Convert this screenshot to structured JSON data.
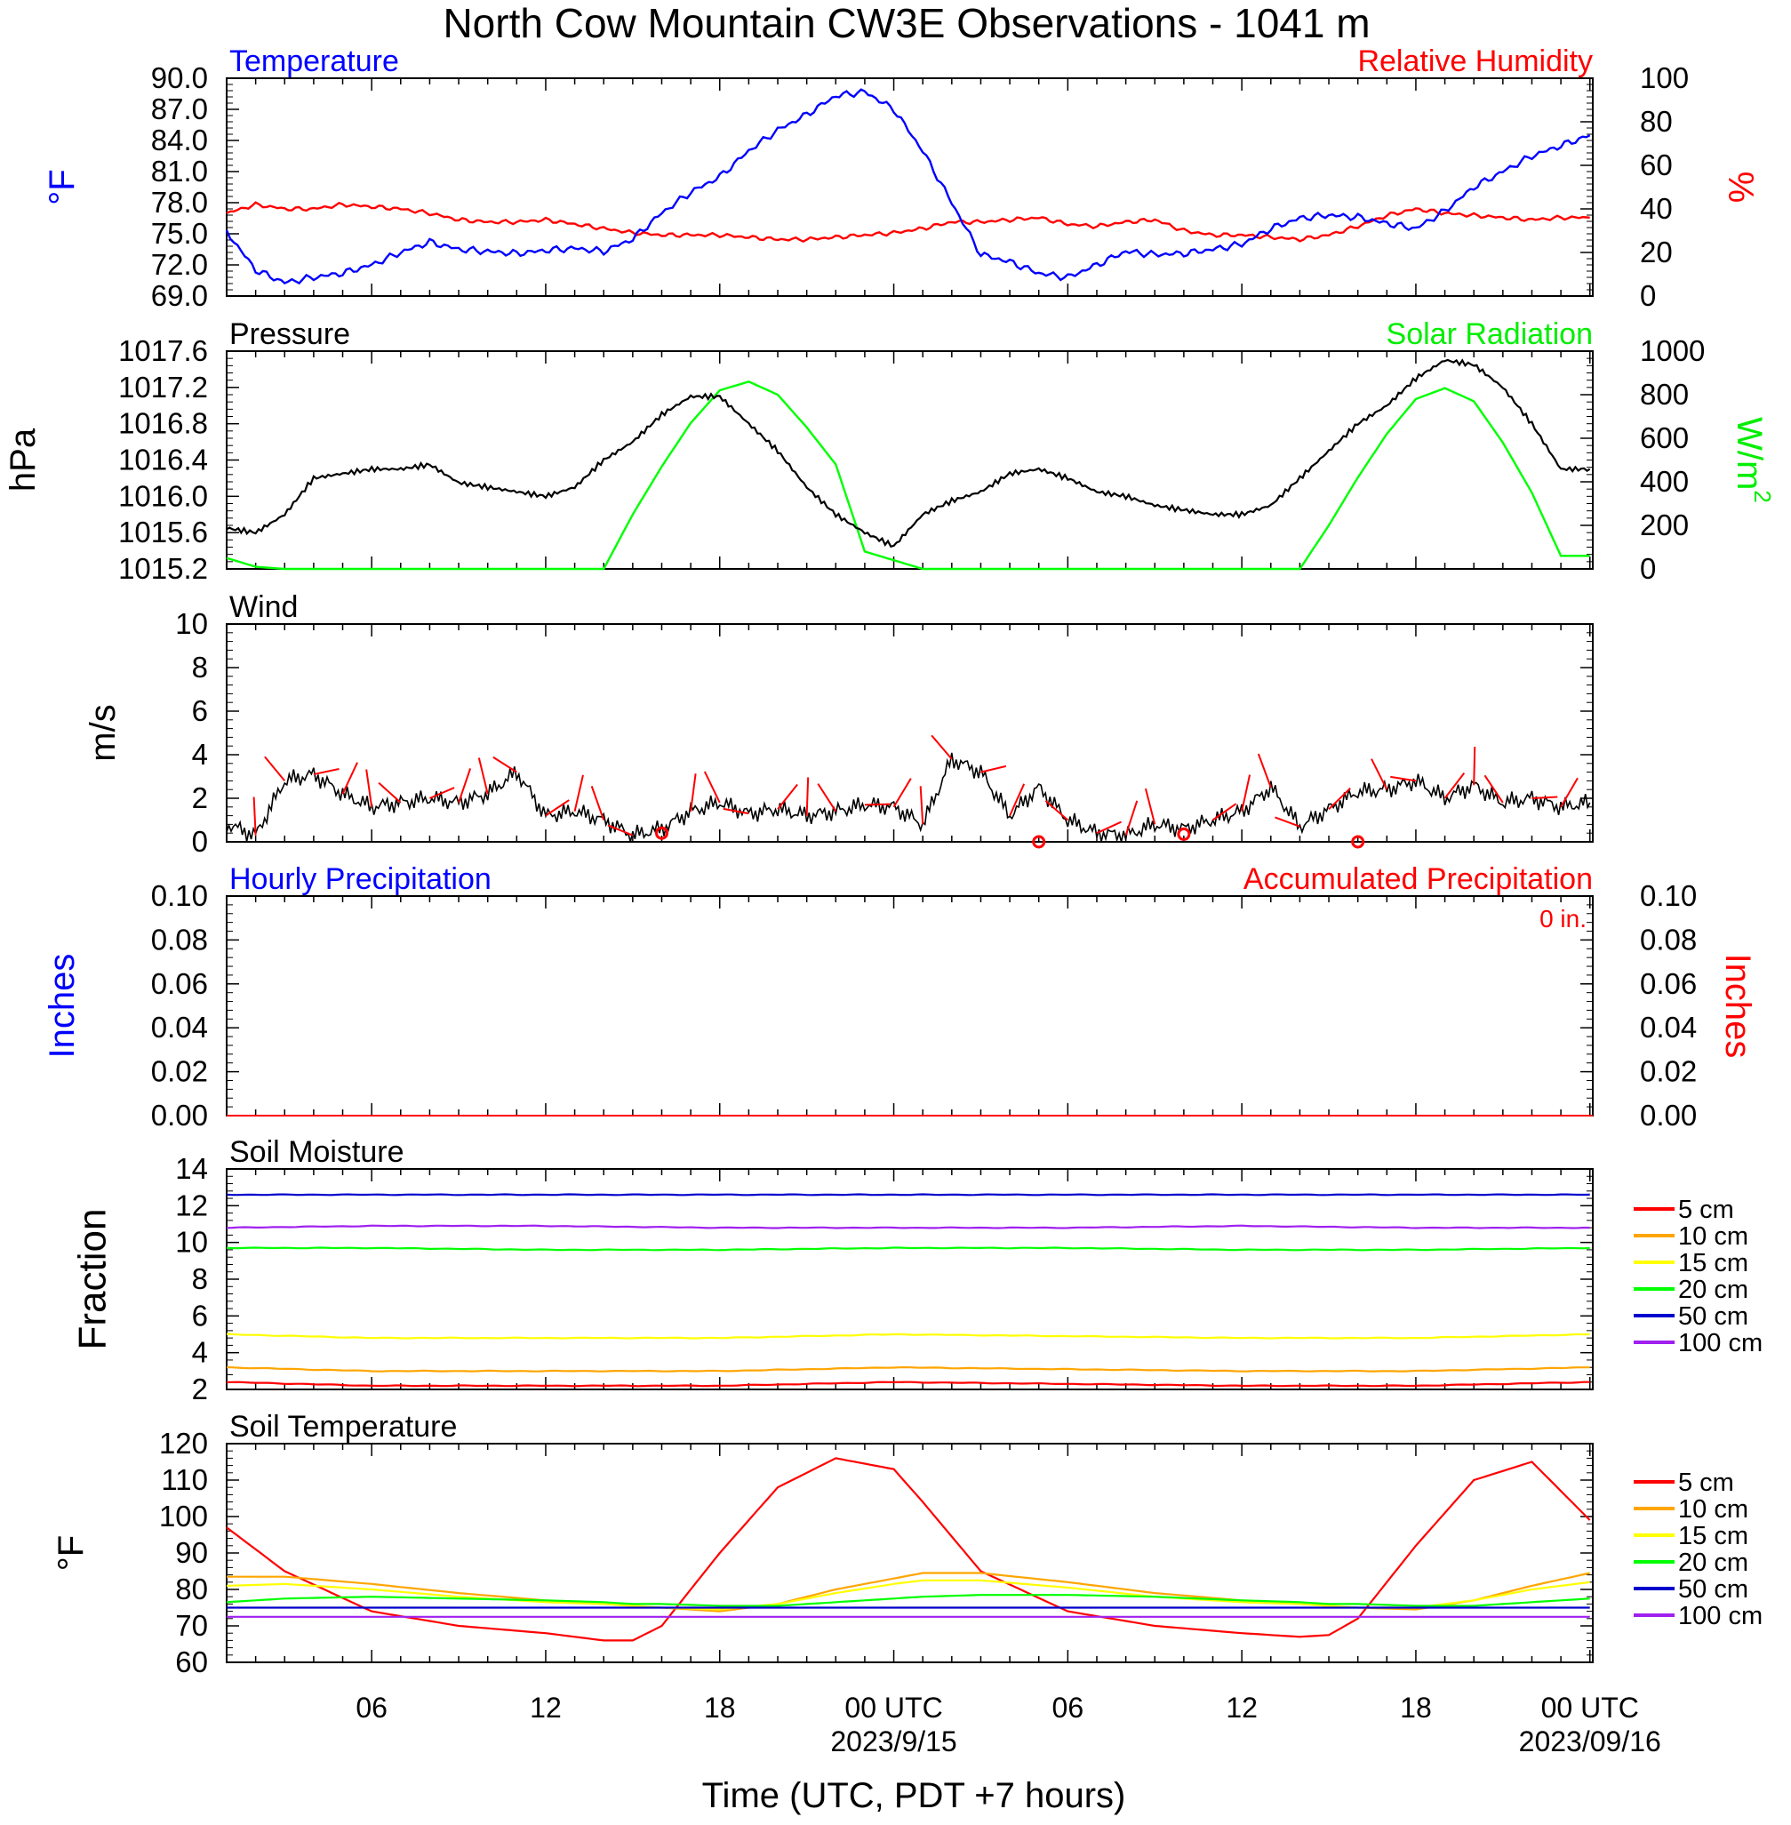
{
  "title": "North Cow Mountain CW3E Observations - 1041 m",
  "time_axis": {
    "label": "Time (UTC, PDT +7 hours)",
    "ticks": [
      {
        "hour": 6,
        "label": "06",
        "date": ""
      },
      {
        "hour": 12,
        "label": "12",
        "date": ""
      },
      {
        "hour": 18,
        "label": "18",
        "date": ""
      },
      {
        "hour": 24,
        "label": "00 UTC",
        "date": "2023/9/15"
      },
      {
        "hour": 30,
        "label": "06",
        "date": ""
      },
      {
        "hour": 36,
        "label": "12",
        "date": ""
      },
      {
        "hour": 42,
        "label": "18",
        "date": ""
      },
      {
        "hour": 48,
        "label": "00 UTC",
        "date": "2023/09/16"
      }
    ],
    "range_hours": [
      1,
      48.1
    ]
  },
  "chart_data": [
    {
      "type": "line",
      "name": "temp-rh",
      "title_left": "Temperature",
      "title_right": "Relative Humidity",
      "ylabel_left": "°F",
      "ylabel_right": "%",
      "ylim_left": [
        69,
        90
      ],
      "ylim_right": [
        0,
        100
      ],
      "yticks_left": [
        "69.0",
        "72.0",
        "75.0",
        "78.0",
        "81.0",
        "84.0",
        "87.0",
        "90.0"
      ],
      "yticks_right": [
        "0",
        "20",
        "40",
        "60",
        "80",
        "100"
      ],
      "colors": {
        "left": "#0000ff",
        "right": "#ff0000"
      },
      "x": [
        1,
        2,
        3,
        4,
        5,
        6,
        7,
        8,
        9,
        10,
        11,
        12,
        13,
        14,
        15,
        16,
        17,
        18,
        19,
        20,
        21,
        22,
        23,
        24,
        25,
        26,
        27,
        28,
        29,
        30,
        31,
        32,
        33,
        34,
        35,
        36,
        37,
        38,
        39,
        40,
        41,
        42,
        43,
        44,
        45,
        46,
        47,
        48
      ],
      "temperature": [
        75.2,
        71.5,
        70.3,
        70.8,
        71.2,
        72,
        73.2,
        74.2,
        73.5,
        73.3,
        73.1,
        73.4,
        73.6,
        73.3,
        74.5,
        77,
        79,
        80.5,
        83,
        85,
        86.5,
        88.3,
        88.7,
        87,
        83,
        78,
        73,
        72.3,
        71.2,
        70.8,
        72,
        73.3,
        73,
        73.1,
        73.5,
        74,
        75.5,
        76.5,
        76.8,
        76.6,
        76,
        75.5,
        77.2,
        79.5,
        81,
        82.5,
        83.5,
        84.5
      ],
      "rh": [
        38,
        42,
        40,
        40,
        42,
        41,
        40,
        38,
        35,
        34,
        34,
        35,
        33,
        31,
        29,
        28,
        28,
        28,
        27,
        26,
        26,
        27,
        28,
        29,
        31,
        34,
        34,
        35,
        36,
        33,
        32,
        34,
        35,
        30,
        28,
        28,
        27,
        26,
        28,
        32,
        37,
        40,
        38,
        37,
        36,
        35,
        36,
        36
      ]
    },
    {
      "type": "line",
      "name": "pressure-solar",
      "title_left": "Pressure",
      "title_right": "Solar Radiation",
      "ylabel_left": "hPa",
      "ylabel_right_main": "W/m",
      "ylabel_right_sup": "2",
      "ylim_left": [
        1015.2,
        1017.6
      ],
      "ylim_right": [
        0,
        1000
      ],
      "yticks_left": [
        "1015.2",
        "1015.6",
        "1016.0",
        "1016.4",
        "1016.8",
        "1017.2",
        "1017.6"
      ],
      "yticks_right": [
        "0",
        "200",
        "400",
        "600",
        "800",
        "1000"
      ],
      "colors": {
        "left": "#000000",
        "right": "#00ff00"
      },
      "x": [
        1,
        2,
        3,
        4,
        5,
        6,
        7,
        8,
        9,
        10,
        11,
        12,
        13,
        14,
        15,
        16,
        17,
        18,
        19,
        20,
        21,
        22,
        23,
        24,
        25,
        26,
        27,
        28,
        29,
        30,
        31,
        32,
        33,
        34,
        35,
        36,
        37,
        38,
        39,
        40,
        41,
        42,
        43,
        44,
        45,
        46,
        47,
        48
      ],
      "pressure": [
        1015.65,
        1015.6,
        1015.8,
        1016.2,
        1016.25,
        1016.3,
        1016.3,
        1016.35,
        1016.15,
        1016.1,
        1016.05,
        1016.0,
        1016.1,
        1016.4,
        1016.6,
        1016.9,
        1017.1,
        1017.1,
        1016.8,
        1016.5,
        1016.1,
        1015.8,
        1015.6,
        1015.45,
        1015.8,
        1015.95,
        1016.05,
        1016.25,
        1016.3,
        1016.2,
        1016.05,
        1016.0,
        1015.9,
        1015.85,
        1015.8,
        1015.8,
        1015.9,
        1016.2,
        1016.5,
        1016.8,
        1017.0,
        1017.3,
        1017.5,
        1017.45,
        1017.2,
        1016.8,
        1016.3,
        1016.3
      ],
      "solar": [
        50,
        10,
        0,
        0,
        0,
        0,
        0,
        0,
        0,
        0,
        0,
        0,
        0,
        0,
        250,
        470,
        670,
        820,
        860,
        800,
        650,
        480,
        80,
        40,
        0,
        0,
        0,
        0,
        0,
        0,
        0,
        0,
        0,
        0,
        0,
        0,
        0,
        0,
        200,
        420,
        620,
        780,
        830,
        770,
        580,
        350,
        60,
        60
      ]
    },
    {
      "type": "line",
      "name": "wind",
      "title_left": "Wind",
      "ylabel_left": "m/s",
      "ylim_left": [
        0,
        10
      ],
      "yticks_left": [
        "0",
        "2",
        "4",
        "6",
        "8",
        "10"
      ],
      "colors": {
        "speed": "#000000",
        "barbs": "#ff0000"
      },
      "x": [
        1,
        2,
        3,
        4,
        5,
        6,
        7,
        8,
        9,
        10,
        11,
        12,
        13,
        14,
        15,
        16,
        17,
        18,
        19,
        20,
        21,
        22,
        23,
        24,
        25,
        26,
        27,
        28,
        29,
        30,
        31,
        32,
        33,
        34,
        35,
        36,
        37,
        38,
        39,
        40,
        41,
        42,
        43,
        44,
        45,
        46,
        47,
        48
      ],
      "speed": [
        0.8,
        0.3,
        2.8,
        3.1,
        2.2,
        1.6,
        1.8,
        2,
        1.8,
        2.2,
        3.2,
        1.2,
        1.4,
        1,
        0.3,
        0.6,
        1.4,
        1.8,
        1.3,
        1.5,
        1.2,
        1.4,
        1.7,
        1.6,
        0.8,
        3.8,
        3.2,
        1.2,
        2.5,
        1,
        0.4,
        0.3,
        0.8,
        0.6,
        1,
        1.4,
        2.5,
        0.7,
        1.5,
        2.3,
        2.4,
        2.8,
        2,
        2.6,
        1.8,
        2,
        1.6,
        1.8
      ],
      "calm_hours": [
        16,
        29,
        34,
        40
      ]
    },
    {
      "type": "line",
      "name": "precip",
      "title_left": "Hourly Precipitation",
      "title_right": "Accumulated Precipitation",
      "annotation": "0 in.",
      "ylabel_left": "Inches",
      "ylabel_right": "Inches",
      "ylim_left": [
        0,
        0.1
      ],
      "yticks_left": [
        "0.00",
        "0.02",
        "0.04",
        "0.06",
        "0.08",
        "0.10"
      ],
      "yticks_right": [
        "0.00",
        "0.02",
        "0.04",
        "0.06",
        "0.08",
        "0.10"
      ],
      "colors": {
        "left": "#0000ff",
        "right": "#ff0000"
      },
      "hourly": 0,
      "accumulated": 0
    },
    {
      "type": "line",
      "name": "soil-moisture",
      "title_left": "Soil Moisture",
      "ylabel_left": "Fraction",
      "ylim_left": [
        2,
        14
      ],
      "yticks_left": [
        "2",
        "4",
        "6",
        "8",
        "10",
        "12",
        "14"
      ],
      "x": [
        1,
        6,
        12,
        18,
        24,
        30,
        36,
        42,
        48
      ],
      "series": [
        {
          "name": "5 cm",
          "color": "#ff0000",
          "values": [
            2.4,
            2.2,
            2.2,
            2.2,
            2.4,
            2.3,
            2.2,
            2.2,
            2.4
          ]
        },
        {
          "name": "10 cm",
          "color": "#ffa500",
          "values": [
            3.2,
            3.0,
            3.0,
            3.0,
            3.2,
            3.1,
            3.0,
            3.0,
            3.2
          ]
        },
        {
          "name": "15 cm",
          "color": "#ffff00",
          "values": [
            5.0,
            4.8,
            4.8,
            4.8,
            5.0,
            4.9,
            4.8,
            4.8,
            5.0
          ]
        },
        {
          "name": "20 cm",
          "color": "#00ff00",
          "values": [
            9.7,
            9.7,
            9.6,
            9.6,
            9.7,
            9.7,
            9.6,
            9.6,
            9.7
          ]
        },
        {
          "name": "50 cm",
          "color": "#0000cd",
          "values": [
            12.6,
            12.6,
            12.6,
            12.6,
            12.6,
            12.6,
            12.6,
            12.6,
            12.6
          ]
        },
        {
          "name": "100 cm",
          "color": "#a020f0",
          "values": [
            10.8,
            10.9,
            10.9,
            10.8,
            10.8,
            10.8,
            10.9,
            10.8,
            10.8
          ]
        }
      ],
      "legend_placement": "right"
    },
    {
      "type": "line",
      "name": "soil-temperature",
      "title_left": "Soil Temperature",
      "ylabel_left": "°F",
      "ylim_left": [
        60,
        120
      ],
      "yticks_left": [
        "60",
        "70",
        "80",
        "90",
        "100",
        "110",
        "120"
      ],
      "x": [
        1,
        3,
        6,
        9,
        12,
        14,
        15,
        16,
        18,
        20,
        22,
        24,
        25,
        27,
        30,
        33,
        36,
        38,
        39,
        40,
        42,
        44,
        46,
        48
      ],
      "series": [
        {
          "name": "5 cm",
          "color": "#ff0000",
          "values": [
            97,
            85,
            74,
            70,
            68,
            66,
            66,
            70,
            90,
            108,
            116,
            113,
            104,
            85,
            74,
            70,
            68,
            67,
            67.5,
            72,
            92,
            110,
            115,
            99
          ]
        },
        {
          "name": "10 cm",
          "color": "#ffa500",
          "values": [
            83.5,
            83.5,
            81.5,
            79,
            77,
            76,
            75.5,
            75,
            74,
            76,
            80,
            83,
            84.5,
            84.5,
            82,
            79,
            77,
            76,
            75.5,
            75,
            74.5,
            77,
            81,
            84.5
          ]
        },
        {
          "name": "15 cm",
          "color": "#ffff00",
          "values": [
            81,
            81.5,
            80,
            78,
            76.5,
            76,
            75.5,
            75,
            74.5,
            76,
            79,
            81.5,
            82.5,
            82.5,
            80.5,
            78,
            76.5,
            76,
            75.5,
            75,
            75,
            77,
            80,
            82
          ]
        },
        {
          "name": "20 cm",
          "color": "#00ff00",
          "values": [
            76.5,
            77.5,
            78,
            77.5,
            77,
            76.5,
            76,
            76,
            75.5,
            75.5,
            76.5,
            77.5,
            78,
            78.5,
            78.5,
            78,
            77,
            76.5,
            76,
            76,
            75.5,
            75.5,
            76.5,
            77.5
          ]
        },
        {
          "name": "50 cm",
          "color": "#0000cd",
          "values": [
            75,
            75,
            75,
            75,
            75,
            75,
            75,
            75,
            75,
            75,
            75,
            75,
            75,
            75,
            75,
            75,
            75,
            75,
            75,
            75,
            75,
            75,
            75,
            75
          ]
        },
        {
          "name": "100 cm",
          "color": "#a020f0",
          "values": [
            72.5,
            72.5,
            72.5,
            72.5,
            72.5,
            72.5,
            72.5,
            72.5,
            72.5,
            72.5,
            72.5,
            72.5,
            72.5,
            72.5,
            72.5,
            72.5,
            72.5,
            72.5,
            72.5,
            72.5,
            72.5,
            72.5,
            72.5,
            72.5
          ]
        }
      ],
      "legend_placement": "right"
    }
  ]
}
